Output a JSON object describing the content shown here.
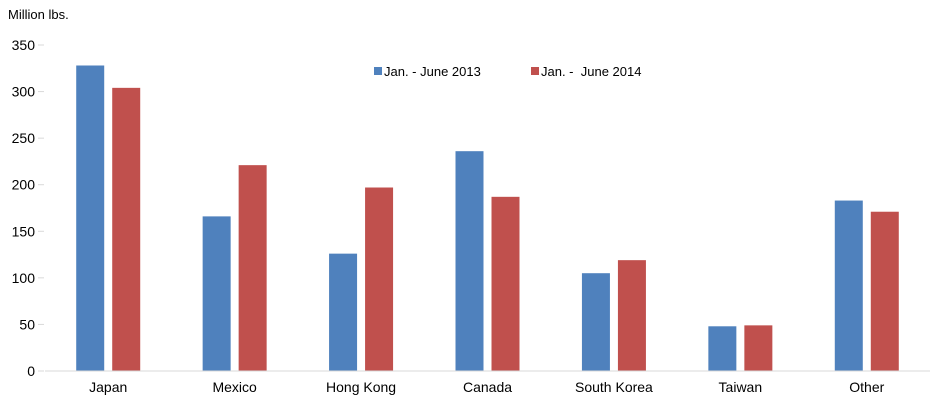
{
  "chart_data": {
    "type": "bar",
    "title": "",
    "ylabel": "Million lbs.",
    "xlabel": "",
    "ylim": [
      0,
      350
    ],
    "yticks": [
      0,
      50,
      100,
      150,
      200,
      250,
      300,
      350
    ],
    "grid": false,
    "legend_position": "top-center",
    "categories": [
      "Japan",
      "Mexico",
      "Hong Kong",
      "Canada",
      "South Korea",
      "Taiwan",
      "Other"
    ],
    "series": [
      {
        "name": "Jan. - June 2013",
        "color": "#4F81BD",
        "values": [
          328,
          166,
          126,
          236,
          105,
          48,
          183
        ]
      },
      {
        "name": "Jan. -  June 2014",
        "color": "#C0504D",
        "values": [
          304,
          221,
          197,
          187,
          119,
          49,
          171
        ]
      }
    ]
  }
}
